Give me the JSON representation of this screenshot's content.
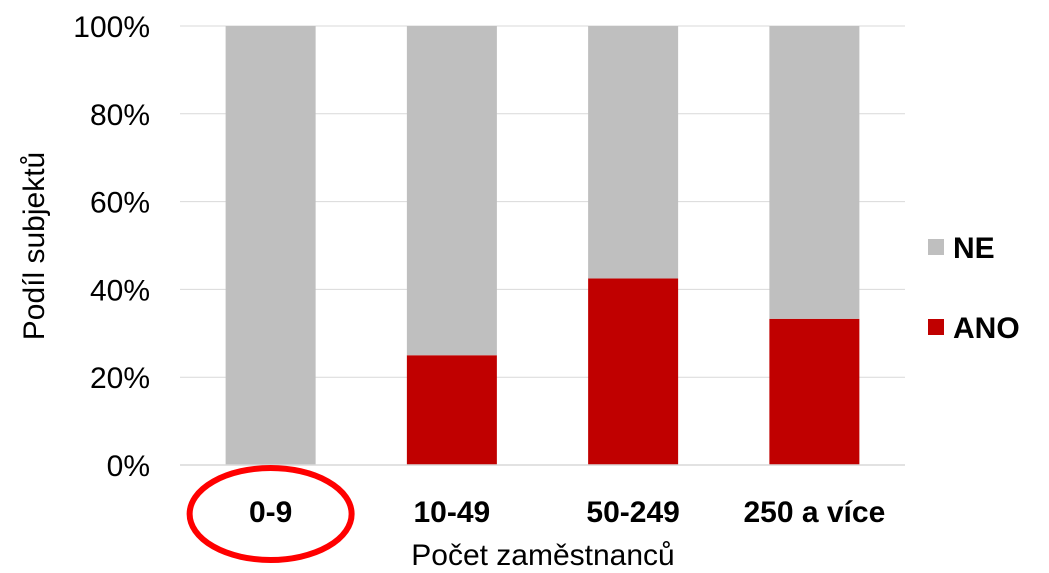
{
  "chart_data": {
    "type": "bar",
    "stacked": true,
    "categories": [
      "0-9",
      "10-49",
      "50-249",
      "250 a více"
    ],
    "series": [
      {
        "name": "ANO",
        "values": [
          0,
          25,
          42.5,
          33.3
        ],
        "color": "#c00000"
      },
      {
        "name": "NE",
        "values": [
          100,
          75,
          57.5,
          66.7
        ],
        "color": "#bfbfbf"
      }
    ],
    "title": "",
    "xlabel": "Počet zaměstnanců",
    "ylabel": "Podíl subjektů",
    "ylim": [
      0,
      100
    ],
    "yticks": [
      "0%",
      "20%",
      "40%",
      "60%",
      "80%",
      "100%"
    ],
    "grid": true,
    "legend_position": "right",
    "legend_order": [
      "NE",
      "ANO"
    ],
    "annotation": {
      "type": "ellipse-highlight",
      "target_category": "0-9",
      "color": "#ff0000"
    }
  }
}
